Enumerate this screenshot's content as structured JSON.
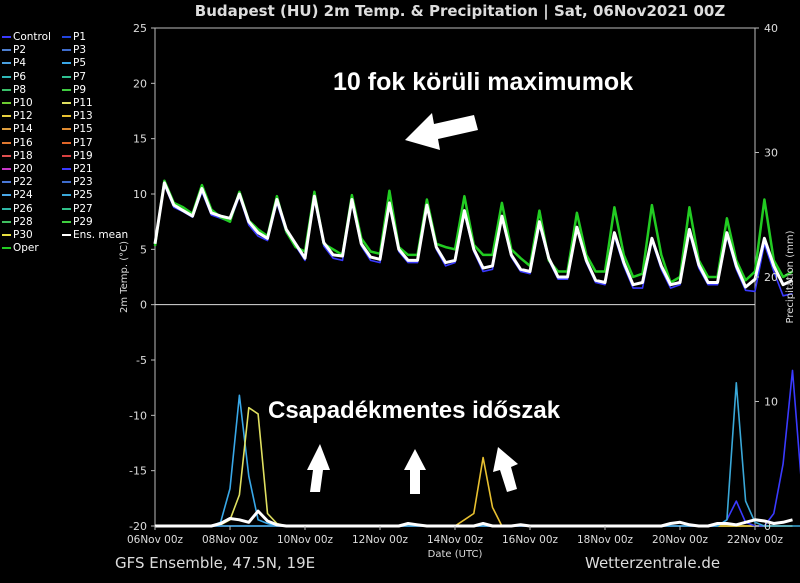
{
  "header": {
    "title": "Budapest  (HU)  2m Temp. & Precipitation | Sat, 06Nov2021 00Z"
  },
  "footer": {
    "left": "GFS Ensemble, 47.5N, 19E",
    "right": "Wetterzentrale.de"
  },
  "annotations": {
    "maxima": "10 fok körüli maximumok",
    "dry_period": "Csapadékmentes időszak"
  },
  "legend": [
    {
      "name": "Control",
      "color": "#3a3aff"
    },
    {
      "name": "P1",
      "color": "#2244dd"
    },
    {
      "name": "P2",
      "color": "#4e7fd0"
    },
    {
      "name": "P3",
      "color": "#3e6ccc"
    },
    {
      "name": "P4",
      "color": "#4aa0e0"
    },
    {
      "name": "P5",
      "color": "#39a8e8"
    },
    {
      "name": "P6",
      "color": "#2fb8b8"
    },
    {
      "name": "P7",
      "color": "#2fc090"
    },
    {
      "name": "P8",
      "color": "#3ac06a"
    },
    {
      "name": "P9",
      "color": "#40cc40"
    },
    {
      "name": "P10",
      "color": "#6ccc30"
    },
    {
      "name": "P11",
      "color": "#e0e060"
    },
    {
      "name": "P12",
      "color": "#e8d040"
    },
    {
      "name": "P13",
      "color": "#e8c030"
    },
    {
      "name": "P14",
      "color": "#e0a040"
    },
    {
      "name": "P15",
      "color": "#e08a30"
    },
    {
      "name": "P16",
      "color": "#e07830"
    },
    {
      "name": "P17",
      "color": "#e06428"
    },
    {
      "name": "P18",
      "color": "#e05050"
    },
    {
      "name": "P19",
      "color": "#d84040"
    },
    {
      "name": "P20",
      "color": "#c838c8"
    },
    {
      "name": "P21",
      "color": "#3a3aff"
    },
    {
      "name": "P22",
      "color": "#4a78d8"
    },
    {
      "name": "P23",
      "color": "#3e6ccc"
    },
    {
      "name": "P24",
      "color": "#4aa8e8"
    },
    {
      "name": "P25",
      "color": "#3aa8d8"
    },
    {
      "name": "P26",
      "color": "#2fb8a8"
    },
    {
      "name": "P27",
      "color": "#30c088"
    },
    {
      "name": "P28",
      "color": "#40c060"
    },
    {
      "name": "P29",
      "color": "#40d040"
    },
    {
      "name": "P30",
      "color": "#e8e040"
    },
    {
      "name": "Ens. mean",
      "color": "#ffffff"
    },
    {
      "name": "Oper",
      "color": "#22cc22"
    }
  ],
  "chart_data": {
    "type": "line",
    "xlabel": "Date (UTC)",
    "ylabel": "2m Temp. (°C)",
    "y2label": "Precipitation (mm)",
    "ylim": [
      -20,
      25
    ],
    "y2lim": [
      0,
      40
    ],
    "xlim": [
      "06Nov 00z",
      "22Nov 00z"
    ],
    "x_ticks": [
      "06Nov 00z",
      "08Nov 00z",
      "10Nov 00z",
      "12Nov 00z",
      "14Nov 00z",
      "16Nov 00z",
      "18Nov 00z",
      "20Nov 00z",
      "22Nov 00z"
    ],
    "y_ticks": [
      -20,
      -15,
      -10,
      -5,
      0,
      5,
      10,
      15,
      20,
      25
    ],
    "y2_ticks": [
      0,
      10,
      20,
      30,
      40
    ],
    "x_step_hours": 6,
    "series": [
      {
        "name": "Ens. mean",
        "kind": "temp",
        "values": [
          5.5,
          11,
          9,
          8.5,
          8,
          10.5,
          8.3,
          8,
          7.8,
          10,
          7.5,
          6.5,
          6,
          9.5,
          6.8,
          5.5,
          4.2,
          9.8,
          5.6,
          4.5,
          4.4,
          9.5,
          5.5,
          4.3,
          4.1,
          9.2,
          5,
          4,
          4,
          9,
          5.2,
          3.8,
          4,
          8.5,
          5,
          3.3,
          3.5,
          8,
          4.5,
          3.2,
          3,
          7.5,
          4.2,
          2.5,
          2.5,
          7,
          4,
          2.2,
          2,
          6.5,
          3.8,
          1.8,
          2,
          6,
          3.5,
          1.8,
          2,
          6.8,
          3.6,
          2,
          2,
          6.5,
          3.5,
          1.6,
          2.3,
          6,
          3.5,
          1.8,
          2.2
        ]
      },
      {
        "name": "Oper",
        "kind": "temp",
        "values": [
          5.3,
          11.2,
          9.2,
          8.8,
          8.2,
          10.8,
          8.6,
          7.9,
          7.5,
          10.2,
          7.6,
          6.8,
          6.2,
          9.8,
          6.6,
          5.2,
          4.8,
          10.2,
          5.5,
          5,
          4.5,
          9.9,
          6,
          4.8,
          4.6,
          10.3,
          5.2,
          4.5,
          4.5,
          9.5,
          5.5,
          5.2,
          5,
          9.8,
          5.4,
          4.5,
          4.5,
          9.2,
          5,
          4.2,
          3.5,
          8.5,
          4,
          3,
          3,
          8.3,
          4.5,
          3,
          3,
          8.8,
          4.5,
          2.5,
          2.8,
          9,
          4.5,
          2,
          2.5,
          8.8,
          4,
          2.5,
          2.5,
          7.8,
          4,
          2.2,
          3,
          9.5,
          4,
          2.5,
          3
        ]
      },
      {
        "name": "Control",
        "kind": "temp",
        "values": [
          5.4,
          10.8,
          8.8,
          8.4,
          7.9,
          10.2,
          8.1,
          7.8,
          7.5,
          9.8,
          7.2,
          6.2,
          5.8,
          9.2,
          6.5,
          5.3,
          4,
          9.5,
          5.3,
          4.2,
          4,
          9.2,
          5.3,
          4,
          3.8,
          9,
          4.8,
          3.8,
          3.8,
          8.8,
          5,
          3.5,
          3.8,
          8.2,
          4.8,
          3,
          3.2,
          7.8,
          4.3,
          3,
          2.8,
          7.2,
          4,
          2.3,
          2.3,
          6.8,
          3.8,
          2,
          1.8,
          6.2,
          3.5,
          1.5,
          1.5,
          5.8,
          3.2,
          1.5,
          1.8,
          6.5,
          3.3,
          1.8,
          1.8,
          6.2,
          3.2,
          1.3,
          1.2,
          5.5,
          3,
          0.8,
          1
        ]
      },
      {
        "name": "Ens. mean",
        "kind": "precip",
        "values": [
          0,
          0,
          0,
          0,
          0,
          0,
          0,
          0.2,
          0.6,
          0.5,
          0.3,
          1.2,
          0.4,
          0.1,
          0,
          0,
          0,
          0,
          0,
          0,
          0,
          0,
          0,
          0,
          0,
          0,
          0,
          0.2,
          0.1,
          0,
          0,
          0,
          0,
          0,
          0,
          0.2,
          0,
          0,
          0,
          0.1,
          0,
          0,
          0,
          0,
          0,
          0,
          0,
          0,
          0,
          0,
          0,
          0,
          0,
          0,
          0,
          0.2,
          0.3,
          0.1,
          0,
          0,
          0.2,
          0.2,
          0.1,
          0.3,
          0.5,
          0.4,
          0.2,
          0.3,
          0.5
        ]
      },
      {
        "name": "P5",
        "kind": "precip",
        "values": [
          0,
          0,
          0,
          0,
          0,
          0,
          0,
          0.3,
          3,
          10.5,
          4,
          0.5,
          0.2,
          0,
          0,
          0,
          0,
          0,
          0,
          0,
          0,
          0,
          0,
          0,
          0,
          0,
          0,
          0,
          0,
          0,
          0,
          0,
          0,
          0,
          0,
          0,
          0,
          0,
          0,
          0,
          0,
          0,
          0,
          0,
          0,
          0,
          0,
          0,
          0,
          0,
          0,
          0,
          0,
          0,
          0,
          0,
          0,
          0,
          0,
          0,
          0,
          0,
          0,
          0,
          0,
          0,
          0,
          0,
          0
        ]
      },
      {
        "name": "P11",
        "kind": "precip",
        "values": [
          0,
          0,
          0,
          0,
          0,
          0,
          0,
          0.1,
          0.5,
          2.5,
          9.5,
          9,
          1,
          0.2,
          0,
          0,
          0,
          0,
          0,
          0,
          0,
          0,
          0,
          0,
          0,
          0,
          0,
          0,
          0,
          0,
          0,
          0,
          0,
          0,
          0,
          0,
          0,
          0,
          0,
          0,
          0,
          0,
          0,
          0,
          0,
          0,
          0,
          0,
          0,
          0,
          0,
          0,
          0,
          0,
          0,
          0,
          0,
          0,
          0,
          0,
          0,
          0,
          0,
          0,
          0,
          0,
          0,
          0,
          0
        ]
      },
      {
        "name": "P13",
        "kind": "precip",
        "values": [
          0,
          0,
          0,
          0,
          0,
          0,
          0,
          0,
          0,
          0,
          0,
          0,
          0,
          0,
          0,
          0,
          0,
          0,
          0,
          0,
          0,
          0,
          0,
          0,
          0,
          0,
          0,
          0,
          0,
          0,
          0,
          0,
          0,
          0.5,
          1,
          5.5,
          1.5,
          0,
          0,
          0,
          0,
          0,
          0,
          0,
          0,
          0,
          0,
          0,
          0,
          0,
          0,
          0,
          0,
          0,
          0,
          0,
          0,
          0,
          0,
          0,
          0,
          0,
          0,
          0,
          0,
          0,
          0,
          0,
          0
        ]
      },
      {
        "name": "P21",
        "kind": "precip",
        "values": [
          0,
          0,
          0,
          0,
          0,
          0,
          0,
          0,
          0,
          0,
          0,
          0,
          0,
          0,
          0,
          0,
          0,
          0,
          0,
          0,
          0,
          0,
          0,
          0,
          0,
          0,
          0,
          0,
          0,
          0,
          0,
          0,
          0,
          0,
          0,
          0,
          0,
          0,
          0,
          0,
          0,
          0,
          0,
          0,
          0,
          0,
          0,
          0,
          0,
          0,
          0,
          0,
          0,
          0,
          0,
          0,
          0,
          0,
          0,
          0,
          0,
          0.5,
          2,
          0.3,
          0,
          0,
          1,
          5,
          12.5,
          3,
          0
        ]
      },
      {
        "name": "P25",
        "kind": "precip",
        "values": [
          0,
          0,
          0,
          0,
          0,
          0,
          0,
          0,
          0,
          0,
          0,
          0,
          0,
          0,
          0,
          0,
          0,
          0,
          0,
          0,
          0,
          0,
          0,
          0,
          0,
          0,
          0,
          0,
          0,
          0,
          0,
          0,
          0,
          0,
          0,
          0,
          0,
          0,
          0,
          0,
          0,
          0,
          0,
          0,
          0,
          0,
          0,
          0,
          0,
          0,
          0,
          0,
          0,
          0,
          0,
          0,
          0,
          0,
          0,
          0,
          0,
          0.5,
          11.5,
          2,
          0.3,
          0,
          0,
          0,
          0,
          0,
          0
        ]
      }
    ]
  }
}
